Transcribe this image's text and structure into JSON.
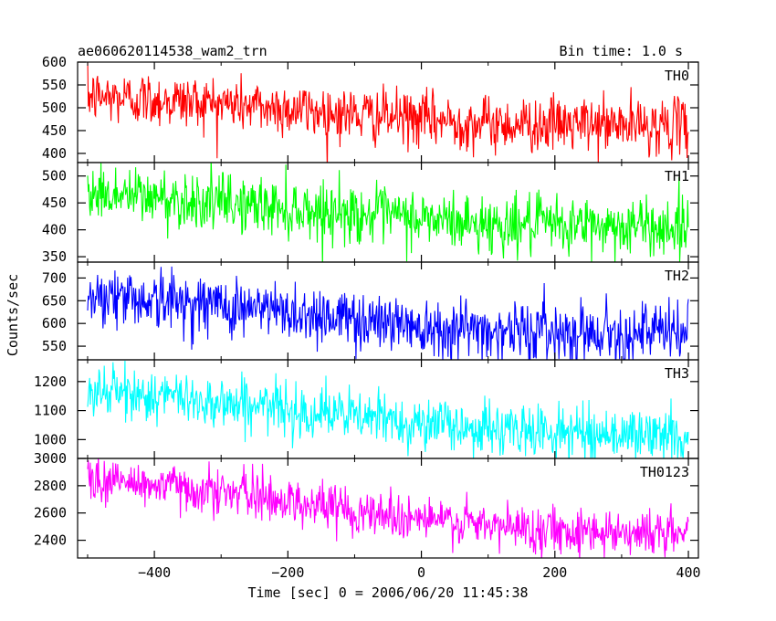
{
  "header": {
    "left": "ae060620114538_wam2_trn",
    "right": "Bin time: 1.0 s"
  },
  "chart_data": {
    "type": "line",
    "xlabel": "Time [sec] 0 = 2006/06/20 11:45:38",
    "ylabel": "Counts/sec",
    "xlim": [
      -515,
      415
    ],
    "xticks": [
      -400,
      -200,
      0,
      200,
      400
    ],
    "x_range": [
      -500,
      400
    ],
    "bin_time_sec": 1.0,
    "panels": [
      {
        "name": "TH0",
        "color": "#ff0000",
        "ylim": [
          380,
          600
        ],
        "yticks": [
          400,
          450,
          500,
          550,
          600
        ],
        "trend": [
          [
            -500,
            525
          ],
          [
            -300,
            510
          ],
          [
            -100,
            485
          ],
          [
            100,
            465
          ],
          [
            400,
            460
          ]
        ],
        "noise_amplitude": 30
      },
      {
        "name": "TH1",
        "color": "#00ff00",
        "ylim": [
          340,
          525
        ],
        "yticks": [
          350,
          400,
          450,
          500
        ],
        "trend": [
          [
            -500,
            470
          ],
          [
            -300,
            450
          ],
          [
            -100,
            430
          ],
          [
            100,
            410
          ],
          [
            400,
            405
          ]
        ],
        "noise_amplitude": 27
      },
      {
        "name": "TH2",
        "color": "#0000ff",
        "ylim": [
          520,
          735
        ],
        "yticks": [
          550,
          600,
          650,
          700
        ],
        "trend": [
          [
            -500,
            665
          ],
          [
            -300,
            640
          ],
          [
            -100,
            610
          ],
          [
            100,
            585
          ],
          [
            400,
            578
          ]
        ],
        "noise_amplitude": 33
      },
      {
        "name": "TH3",
        "color": "#00ffff",
        "ylim": [
          935,
          1275
        ],
        "yticks": [
          1000,
          1100,
          1200
        ],
        "trend": [
          [
            -500,
            1170
          ],
          [
            -300,
            1130
          ],
          [
            -100,
            1080
          ],
          [
            100,
            1035
          ],
          [
            400,
            1010
          ]
        ],
        "noise_amplitude": 45
      },
      {
        "name": "TH0123",
        "color": "#ff00ff",
        "ylim": [
          2270,
          3000
        ],
        "yticks": [
          2400,
          2600,
          2800,
          3000
        ],
        "trend": [
          [
            -500,
            2850
          ],
          [
            -300,
            2760
          ],
          [
            -100,
            2620
          ],
          [
            100,
            2500
          ],
          [
            400,
            2445
          ]
        ],
        "noise_amplitude": 85
      }
    ]
  }
}
